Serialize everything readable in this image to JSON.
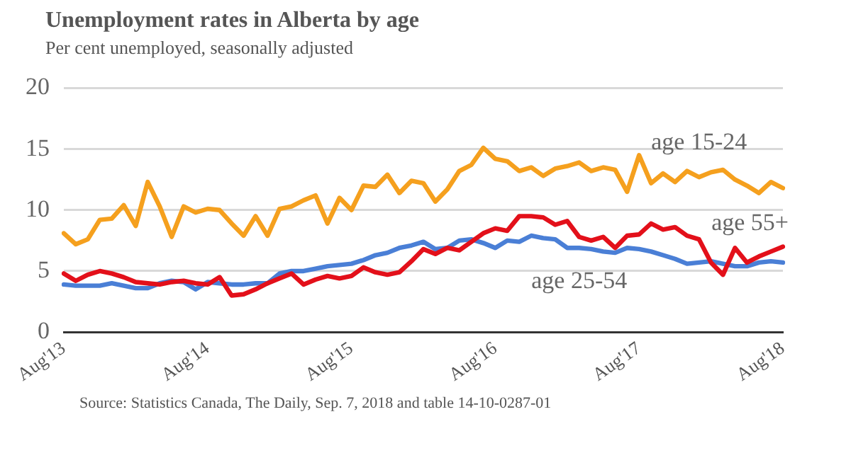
{
  "chart_data": {
    "type": "line",
    "title": "Unemployment rates in Alberta by age",
    "subtitle": "Per cent unemployed, seasonally adjusted",
    "categories": [
      "Aug'13",
      null,
      null,
      null,
      null,
      null,
      null,
      null,
      null,
      null,
      null,
      null,
      "Aug'14",
      null,
      null,
      null,
      null,
      null,
      null,
      null,
      null,
      null,
      null,
      null,
      "Aug'15",
      null,
      null,
      null,
      null,
      null,
      null,
      null,
      null,
      null,
      null,
      null,
      "Aug'16",
      null,
      null,
      null,
      null,
      null,
      null,
      null,
      null,
      null,
      null,
      null,
      "Aug'17",
      null,
      null,
      null,
      null,
      null,
      null,
      null,
      null,
      null,
      null,
      null,
      "Aug'18"
    ],
    "series": [
      {
        "name": "age 15-24",
        "color": "#f5a01e",
        "values": [
          8.1,
          7.2,
          7.6,
          9.2,
          9.3,
          10.4,
          8.7,
          12.3,
          10.3,
          7.8,
          10.3,
          9.8,
          10.1,
          10.0,
          8.9,
          7.9,
          9.5,
          7.9,
          10.1,
          10.3,
          10.8,
          11.2,
          8.9,
          11.0,
          10.0,
          12.0,
          11.9,
          12.9,
          11.4,
          12.4,
          12.2,
          10.7,
          11.7,
          13.2,
          13.7,
          15.1,
          14.2,
          14.0,
          13.2,
          13.5,
          12.8,
          13.4,
          13.6,
          13.9,
          13.2,
          13.5,
          13.3,
          11.5,
          14.5,
          12.2,
          13.0,
          12.3,
          13.2,
          12.7,
          13.1,
          13.3,
          12.5,
          12.0,
          11.4,
          12.3,
          11.8
        ]
      },
      {
        "name": "age 55+",
        "color": "#e3101a",
        "values": [
          4.8,
          4.2,
          4.7,
          5.0,
          4.8,
          4.5,
          4.1,
          4.0,
          3.9,
          4.1,
          4.2,
          4.0,
          3.9,
          4.5,
          3.0,
          3.1,
          3.5,
          4.0,
          4.4,
          4.8,
          3.9,
          4.3,
          4.6,
          4.4,
          4.6,
          5.3,
          4.9,
          4.7,
          4.9,
          5.8,
          6.8,
          6.4,
          6.9,
          6.7,
          7.4,
          8.1,
          8.5,
          8.3,
          9.5,
          9.5,
          9.4,
          8.8,
          9.1,
          7.8,
          7.5,
          7.8,
          6.9,
          7.9,
          8.0,
          8.9,
          8.4,
          8.6,
          7.9,
          7.6,
          5.7,
          4.7,
          6.9,
          5.7,
          6.2,
          6.6,
          7.0
        ]
      },
      {
        "name": "age 25-54",
        "color": "#4a7fd6",
        "values": [
          3.9,
          3.8,
          3.8,
          3.8,
          4.0,
          3.8,
          3.6,
          3.6,
          4.0,
          4.2,
          4.1,
          3.5,
          4.1,
          4.0,
          3.9,
          3.9,
          4.0,
          4.0,
          4.8,
          5.0,
          5.0,
          5.2,
          5.4,
          5.5,
          5.6,
          5.9,
          6.3,
          6.5,
          6.9,
          7.1,
          7.4,
          6.8,
          6.9,
          7.5,
          7.6,
          7.3,
          6.9,
          7.5,
          7.4,
          7.9,
          7.7,
          7.6,
          6.9,
          6.9,
          6.8,
          6.6,
          6.5,
          6.9,
          6.8,
          6.6,
          6.3,
          6.0,
          5.6,
          5.7,
          5.8,
          5.6,
          5.4,
          5.4,
          5.7,
          5.8,
          5.7
        ]
      }
    ],
    "ylim": [
      0,
      20
    ],
    "yticks": [
      0,
      5,
      10,
      15,
      20
    ],
    "grid": "y",
    "legend": false,
    "marker": "none",
    "line_style": "solid",
    "annotations": [
      "Source: Statistics Canada, The Daily, Sep. 7, 2018 and table 14-10-0287-01"
    ]
  }
}
